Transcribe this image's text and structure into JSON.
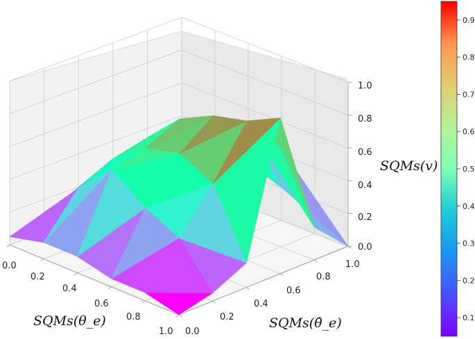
{
  "chart_data": {
    "type": "surface3d",
    "x": [
      0.0,
      0.2,
      0.4,
      0.6,
      0.8,
      1.0
    ],
    "y": [
      0.0,
      0.2,
      0.4,
      0.6,
      0.8,
      1.0
    ],
    "z": [
      [
        0.05,
        0.1,
        0.12,
        0.12,
        0.1,
        0.05
      ],
      [
        0.1,
        0.35,
        0.45,
        0.5,
        0.4,
        0.1
      ],
      [
        0.1,
        0.55,
        0.6,
        0.7,
        0.5,
        0.3
      ],
      [
        0.05,
        0.4,
        0.65,
        0.8,
        0.65,
        0.2
      ],
      [
        0.05,
        0.3,
        0.55,
        0.85,
        0.6,
        0.1
      ],
      [
        0.0,
        0.05,
        0.15,
        0.95,
        0.2,
        0.0
      ]
    ],
    "xlabel": "SQMs(θ_e)",
    "ylabel": "SQMs(θ̇_e)",
    "zlabel": "SQMs(v)",
    "x_ticks": [
      "0.0",
      "0.2",
      "0.4",
      "0.6",
      "0.8",
      "1.0"
    ],
    "y_ticks": [
      "0.0",
      "0.2",
      "0.4",
      "0.6",
      "0.8",
      "1.0"
    ],
    "z_ticks": [
      "0.0",
      "0.2",
      "0.4",
      "0.6",
      "0.8",
      "1.0"
    ],
    "xlim": [
      0,
      1
    ],
    "ylim": [
      0,
      1
    ],
    "zlim": [
      0,
      1
    ],
    "grid": true,
    "colormap": "rainbow",
    "colorbar": {
      "ticks": [
        "0.1",
        "0.2",
        "0.3",
        "0.4",
        "0.5",
        "0.6",
        "0.7",
        "0.8",
        "0.9"
      ],
      "range": [
        0.05,
        0.95
      ]
    }
  }
}
